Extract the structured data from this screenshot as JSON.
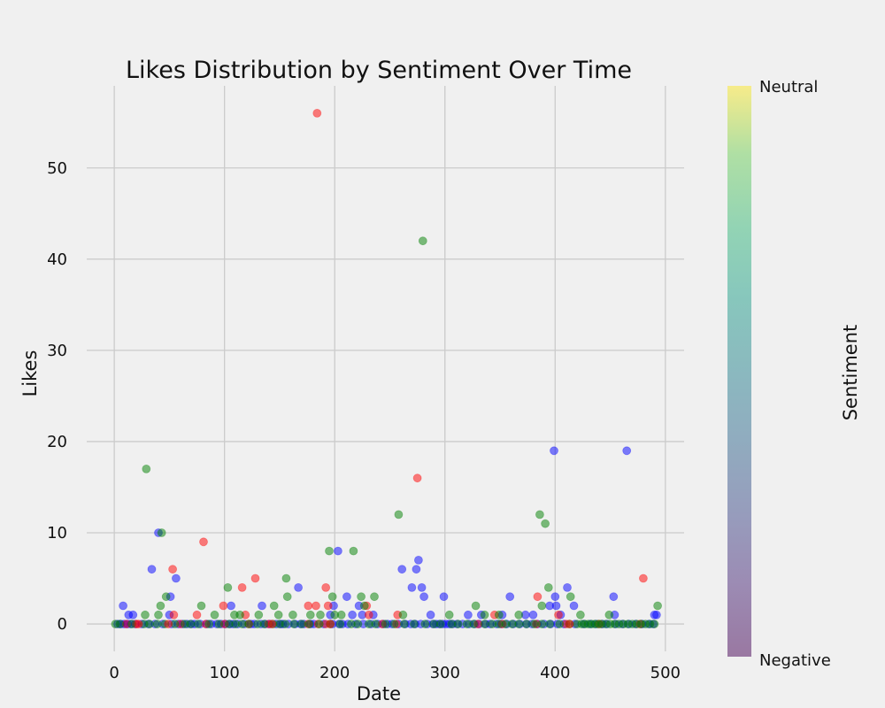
{
  "chart_data": {
    "type": "scatter",
    "title": "Likes Distribution by Sentiment Over Time",
    "xlabel": "Date",
    "ylabel": "Likes",
    "xlim": [
      -25,
      517
    ],
    "ylim": [
      -3,
      59
    ],
    "xticks": [
      0,
      100,
      200,
      300,
      400,
      500
    ],
    "yticks": [
      0,
      10,
      20,
      30,
      40,
      50
    ],
    "grid": true,
    "colors": {
      "red": "#ff0000",
      "green": "#008000",
      "blue": "#0000ff"
    },
    "colorbar": {
      "label": "Sentiment",
      "min_label": "Negative",
      "max_label": "Neutral",
      "colormap": "viridis",
      "alpha": 0.5
    },
    "series": [
      {
        "color": "blue",
        "points": [
          [
            8,
            2
          ],
          [
            13,
            1
          ],
          [
            17,
            1
          ],
          [
            34,
            6
          ],
          [
            40,
            10
          ],
          [
            50,
            1
          ],
          [
            51,
            3
          ],
          [
            56,
            5
          ],
          [
            106,
            2
          ],
          [
            134,
            2
          ],
          [
            167,
            4
          ],
          [
            196,
            1
          ],
          [
            199,
            2
          ],
          [
            203,
            8
          ],
          [
            211,
            3
          ],
          [
            216,
            1
          ],
          [
            222,
            2
          ],
          [
            225,
            1
          ],
          [
            235,
            1
          ],
          [
            261,
            6
          ],
          [
            270,
            4
          ],
          [
            274,
            6
          ],
          [
            276,
            7
          ],
          [
            279,
            4
          ],
          [
            281,
            3
          ],
          [
            287,
            1
          ],
          [
            299,
            3
          ],
          [
            321,
            1
          ],
          [
            333,
            1
          ],
          [
            352,
            1
          ],
          [
            359,
            3
          ],
          [
            373,
            1
          ],
          [
            380,
            1
          ],
          [
            395,
            2
          ],
          [
            399,
            19
          ],
          [
            400,
            3
          ],
          [
            401,
            2
          ],
          [
            405,
            1
          ],
          [
            411,
            4
          ],
          [
            417,
            2
          ],
          [
            465,
            19
          ],
          [
            453,
            3
          ],
          [
            454,
            1
          ],
          [
            490,
            1
          ],
          [
            492,
            1
          ]
        ]
      },
      {
        "color": "red",
        "points": [
          [
            22,
            0
          ],
          [
            49,
            0
          ],
          [
            53,
            6
          ],
          [
            54,
            1
          ],
          [
            75,
            1
          ],
          [
            81,
            9
          ],
          [
            99,
            2
          ],
          [
            116,
            4
          ],
          [
            119,
            1
          ],
          [
            128,
            5
          ],
          [
            143,
            0
          ],
          [
            176,
            2
          ],
          [
            184,
            56
          ],
          [
            183,
            2
          ],
          [
            192,
            4
          ],
          [
            194,
            2
          ],
          [
            196,
            0
          ],
          [
            229,
            2
          ],
          [
            231,
            1
          ],
          [
            257,
            1
          ],
          [
            275,
            16
          ],
          [
            345,
            1
          ],
          [
            384,
            3
          ],
          [
            403,
            1
          ],
          [
            413,
            0
          ],
          [
            480,
            5
          ]
        ]
      },
      {
        "color": "green",
        "points": [
          [
            28,
            1
          ],
          [
            29,
            17
          ],
          [
            40,
            1
          ],
          [
            42,
            2
          ],
          [
            43,
            10
          ],
          [
            47,
            3
          ],
          [
            79,
            2
          ],
          [
            91,
            1
          ],
          [
            103,
            4
          ],
          [
            109,
            1
          ],
          [
            114,
            1
          ],
          [
            131,
            1
          ],
          [
            145,
            2
          ],
          [
            149,
            1
          ],
          [
            156,
            5
          ],
          [
            157,
            3
          ],
          [
            162,
            1
          ],
          [
            178,
            1
          ],
          [
            187,
            1
          ],
          [
            195,
            8
          ],
          [
            198,
            3
          ],
          [
            200,
            1
          ],
          [
            206,
            1
          ],
          [
            217,
            8
          ],
          [
            224,
            3
          ],
          [
            227,
            2
          ],
          [
            236,
            3
          ],
          [
            258,
            12
          ],
          [
            262,
            1
          ],
          [
            280,
            42
          ],
          [
            304,
            1
          ],
          [
            328,
            2
          ],
          [
            336,
            1
          ],
          [
            349,
            1
          ],
          [
            367,
            1
          ],
          [
            386,
            12
          ],
          [
            388,
            2
          ],
          [
            391,
            11
          ],
          [
            394,
            4
          ],
          [
            414,
            3
          ],
          [
            423,
            1
          ],
          [
            449,
            1
          ],
          [
            493,
            2
          ]
        ]
      }
    ],
    "baseline": {
      "y": 0,
      "blue_x": [
        3,
        6,
        9,
        12,
        15,
        19,
        25,
        31,
        37,
        44,
        52,
        58,
        62,
        66,
        70,
        73,
        78,
        84,
        88,
        93,
        97,
        101,
        105,
        108,
        112,
        118,
        124,
        127,
        133,
        137,
        141,
        147,
        151,
        153,
        158,
        164,
        169,
        172,
        178,
        181,
        190,
        198,
        204,
        207,
        212,
        219,
        226,
        233,
        239,
        244,
        248,
        252,
        258,
        264,
        269,
        273,
        278,
        284,
        289,
        292,
        295,
        298,
        301,
        304,
        307,
        311,
        316,
        322,
        327,
        331,
        337,
        341,
        347,
        351,
        356,
        362,
        368,
        374,
        379,
        384,
        390,
        396,
        402,
        408,
        418,
        426,
        432,
        437,
        443,
        447,
        455,
        461,
        467,
        473,
        479,
        485,
        489
      ],
      "red_x": [
        11,
        20,
        60,
        83,
        100,
        122,
        140,
        176,
        185,
        192,
        243,
        256,
        330,
        352,
        383,
        410,
        440,
        477
      ],
      "green_x": [
        1,
        5,
        16,
        27,
        32,
        39,
        46,
        55,
        64,
        69,
        76,
        86,
        95,
        104,
        110,
        116,
        122,
        130,
        136,
        144,
        150,
        155,
        163,
        170,
        177,
        186,
        196,
        205,
        215,
        221,
        231,
        237,
        246,
        254,
        263,
        272,
        282,
        290,
        296,
        306,
        312,
        320,
        326,
        336,
        343,
        349,
        355,
        361,
        367,
        374,
        381,
        388,
        395,
        404,
        413,
        420,
        424,
        427,
        430,
        433,
        436,
        439,
        442,
        446,
        450,
        454,
        458,
        462,
        466,
        470,
        474,
        478,
        482,
        486,
        490
      ]
    }
  }
}
